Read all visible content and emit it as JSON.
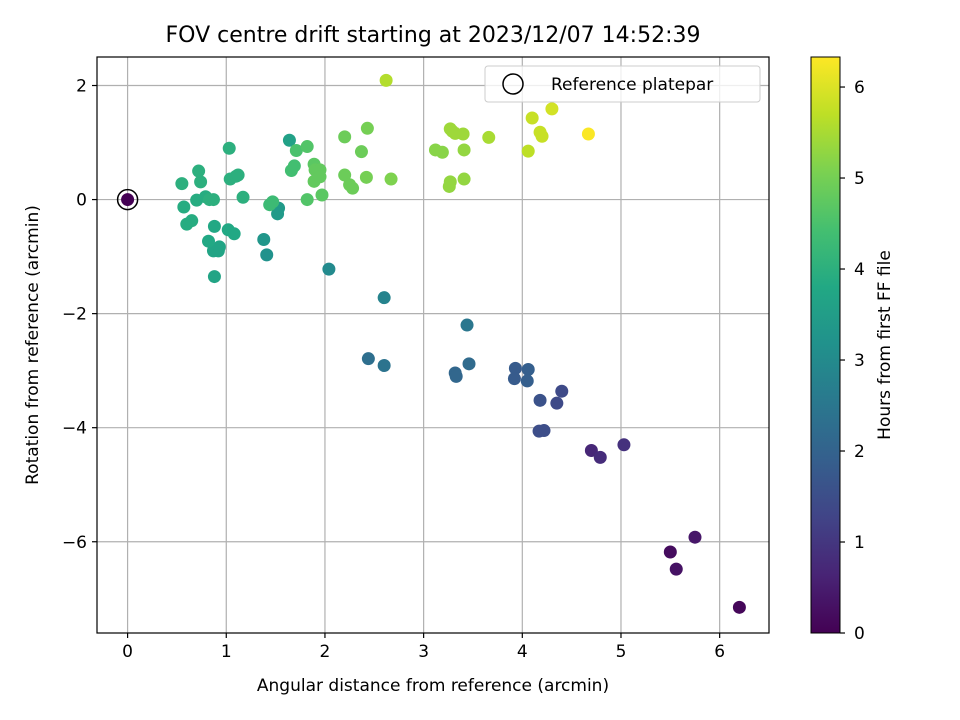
{
  "chart_data": {
    "type": "scatter",
    "title": "FOV centre drift starting at 2023/12/07 14:52:39",
    "xlabel": "Angular distance from reference (arcmin)",
    "ylabel": "Rotation from reference (arcmin)",
    "xlim": [
      -0.31,
      6.5
    ],
    "ylim": [
      -7.6,
      2.5
    ],
    "xticks": [
      0,
      1,
      2,
      3,
      4,
      5,
      6
    ],
    "yticks": [
      -6,
      -4,
      -2,
      0,
      2
    ],
    "xtick_labels": [
      "0",
      "1",
      "2",
      "3",
      "4",
      "5",
      "6"
    ],
    "ytick_labels": [
      "−6",
      "−4",
      "−2",
      "0",
      "2"
    ],
    "grid": true,
    "colormap": "viridis",
    "colorbar": {
      "label": "Hours from first FF file",
      "range": [
        0,
        6.33
      ],
      "ticks": [
        0,
        1,
        2,
        3,
        4,
        5,
        6
      ],
      "tick_labels": [
        "0",
        "1",
        "2",
        "3",
        "4",
        "5",
        "6"
      ]
    },
    "legend": {
      "position": "top-right",
      "entries": [
        "Reference platepar"
      ]
    },
    "reference_point": {
      "x": 0,
      "y": 0
    },
    "points": [
      {
        "x": 6.2,
        "y": -7.15,
        "c": 0.1
      },
      {
        "x": 5.5,
        "y": -6.18,
        "c": 0.2
      },
      {
        "x": 5.56,
        "y": -6.48,
        "c": 0.3
      },
      {
        "x": 5.75,
        "y": -5.92,
        "c": 0.4
      },
      {
        "x": 4.7,
        "y": -4.4,
        "c": 0.7
      },
      {
        "x": 4.79,
        "y": -4.52,
        "c": 0.8
      },
      {
        "x": 5.03,
        "y": -4.3,
        "c": 0.9
      },
      {
        "x": 4.35,
        "y": -3.57,
        "c": 1.4
      },
      {
        "x": 4.4,
        "y": -3.36,
        "c": 1.4
      },
      {
        "x": 4.22,
        "y": -4.05,
        "c": 1.5
      },
      {
        "x": 4.17,
        "y": -4.06,
        "c": 1.5
      },
      {
        "x": 4.18,
        "y": -3.52,
        "c": 1.6
      },
      {
        "x": 3.93,
        "y": -2.96,
        "c": 1.8
      },
      {
        "x": 3.92,
        "y": -3.14,
        "c": 1.8
      },
      {
        "x": 4.06,
        "y": -2.98,
        "c": 1.9
      },
      {
        "x": 4.05,
        "y": -3.18,
        "c": 1.9
      },
      {
        "x": 3.32,
        "y": -3.04,
        "c": 2.1
      },
      {
        "x": 3.33,
        "y": -3.1,
        "c": 2.1
      },
      {
        "x": 3.46,
        "y": -2.88,
        "c": 2.2
      },
      {
        "x": 2.44,
        "y": -2.79,
        "c": 2.3
      },
      {
        "x": 2.6,
        "y": -2.91,
        "c": 2.4
      },
      {
        "x": 3.44,
        "y": -2.2,
        "c": 2.5
      },
      {
        "x": 2.6,
        "y": -1.72,
        "c": 2.8
      },
      {
        "x": 2.04,
        "y": -1.22,
        "c": 3.0
      },
      {
        "x": 1.41,
        "y": -0.97,
        "c": 3.2
      },
      {
        "x": 1.38,
        "y": -0.7,
        "c": 3.3
      },
      {
        "x": 1.53,
        "y": -0.15,
        "c": 3.4
      },
      {
        "x": 1.52,
        "y": -0.25,
        "c": 3.4
      },
      {
        "x": 1.64,
        "y": 1.04,
        "c": 3.6
      },
      {
        "x": 0.88,
        "y": -1.35,
        "c": 3.7
      },
      {
        "x": 0.92,
        "y": -0.9,
        "c": 3.7
      },
      {
        "x": 0.87,
        "y": -0.9,
        "c": 3.7
      },
      {
        "x": 0.93,
        "y": -0.83,
        "c": 3.7
      },
      {
        "x": 0.82,
        "y": -0.73,
        "c": 3.8
      },
      {
        "x": 1.02,
        "y": -0.53,
        "c": 3.8
      },
      {
        "x": 1.08,
        "y": -0.6,
        "c": 3.8
      },
      {
        "x": 0.88,
        "y": -0.47,
        "c": 3.8
      },
      {
        "x": 0.6,
        "y": -0.43,
        "c": 3.9
      },
      {
        "x": 0.65,
        "y": -0.37,
        "c": 3.9
      },
      {
        "x": 0.57,
        "y": -0.13,
        "c": 3.9
      },
      {
        "x": 0.7,
        "y": -0.01,
        "c": 3.9
      },
      {
        "x": 0.79,
        "y": 0.05,
        "c": 3.9
      },
      {
        "x": 0.83,
        "y": 0.0,
        "c": 4.0
      },
      {
        "x": 0.87,
        "y": 0.0,
        "c": 4.0
      },
      {
        "x": 1.17,
        "y": 0.04,
        "c": 4.0
      },
      {
        "x": 0.55,
        "y": 0.28,
        "c": 4.0
      },
      {
        "x": 0.74,
        "y": 0.31,
        "c": 4.0
      },
      {
        "x": 0.72,
        "y": 0.5,
        "c": 4.0
      },
      {
        "x": 1.03,
        "y": 0.9,
        "c": 4.0
      },
      {
        "x": 1.04,
        "y": 0.36,
        "c": 4.0
      },
      {
        "x": 1.1,
        "y": 0.41,
        "c": 4.0
      },
      {
        "x": 1.12,
        "y": 0.43,
        "c": 4.0
      },
      {
        "x": 1.47,
        "y": -0.04,
        "c": 4.3
      },
      {
        "x": 1.44,
        "y": -0.09,
        "c": 4.3
      },
      {
        "x": 1.66,
        "y": 0.51,
        "c": 4.4
      },
      {
        "x": 1.69,
        "y": 0.59,
        "c": 4.4
      },
      {
        "x": 1.71,
        "y": 0.86,
        "c": 4.5
      },
      {
        "x": 1.82,
        "y": 0.93,
        "c": 4.6
      },
      {
        "x": 1.82,
        "y": 0.0,
        "c": 4.6
      },
      {
        "x": 1.97,
        "y": 0.08,
        "c": 4.7
      },
      {
        "x": 1.89,
        "y": 0.62,
        "c": 4.7
      },
      {
        "x": 1.9,
        "y": 0.52,
        "c": 4.8
      },
      {
        "x": 1.95,
        "y": 0.52,
        "c": 4.8
      },
      {
        "x": 1.89,
        "y": 0.32,
        "c": 4.8
      },
      {
        "x": 1.95,
        "y": 0.4,
        "c": 4.8
      },
      {
        "x": 2.2,
        "y": 1.1,
        "c": 4.9
      },
      {
        "x": 2.2,
        "y": 0.43,
        "c": 4.9
      },
      {
        "x": 2.25,
        "y": 0.26,
        "c": 4.9
      },
      {
        "x": 2.28,
        "y": 0.2,
        "c": 4.9
      },
      {
        "x": 2.37,
        "y": 0.84,
        "c": 4.9
      },
      {
        "x": 2.43,
        "y": 1.25,
        "c": 5.0
      },
      {
        "x": 2.42,
        "y": 0.39,
        "c": 5.0
      },
      {
        "x": 2.67,
        "y": 0.36,
        "c": 5.1
      },
      {
        "x": 3.12,
        "y": 0.87,
        "c": 5.2
      },
      {
        "x": 3.19,
        "y": 0.83,
        "c": 5.2
      },
      {
        "x": 3.26,
        "y": 0.23,
        "c": 5.3
      },
      {
        "x": 3.27,
        "y": 0.31,
        "c": 5.3
      },
      {
        "x": 3.41,
        "y": 0.87,
        "c": 5.3
      },
      {
        "x": 3.41,
        "y": 0.36,
        "c": 5.3
      },
      {
        "x": 3.27,
        "y": 1.24,
        "c": 5.4
      },
      {
        "x": 3.29,
        "y": 1.2,
        "c": 5.4
      },
      {
        "x": 3.32,
        "y": 1.16,
        "c": 5.4
      },
      {
        "x": 3.4,
        "y": 1.15,
        "c": 5.4
      },
      {
        "x": 3.66,
        "y": 1.09,
        "c": 5.5
      },
      {
        "x": 2.62,
        "y": 2.09,
        "c": 5.6
      },
      {
        "x": 4.06,
        "y": 0.85,
        "c": 5.7
      },
      {
        "x": 4.1,
        "y": 1.43,
        "c": 5.8
      },
      {
        "x": 4.18,
        "y": 1.18,
        "c": 5.8
      },
      {
        "x": 4.2,
        "y": 1.11,
        "c": 5.8
      },
      {
        "x": 4.3,
        "y": 1.59,
        "c": 5.9
      },
      {
        "x": 4.67,
        "y": 1.15,
        "c": 6.3
      },
      {
        "x": 0.0,
        "y": 0.0,
        "c": 0.0
      }
    ]
  }
}
